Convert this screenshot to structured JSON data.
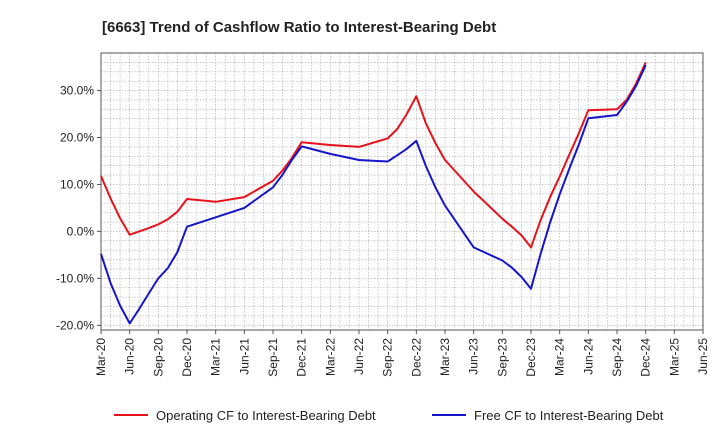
{
  "chart_data": {
    "type": "line",
    "title": "[6663]  Trend of Cashflow Ratio to Interest-Bearing Debt",
    "xlabel": "",
    "ylabel": "",
    "x_ticks": [
      "Mar-20",
      "Jun-20",
      "Sep-20",
      "Dec-20",
      "Mar-21",
      "Jun-21",
      "Sep-21",
      "Dec-21",
      "Mar-22",
      "Jun-22",
      "Sep-22",
      "Dec-22",
      "Mar-23",
      "Jun-23",
      "Sep-23",
      "Dec-23",
      "Mar-24",
      "Jun-24",
      "Sep-24",
      "Dec-24",
      "Mar-25",
      "Jun-25"
    ],
    "y_ticks": [
      "30.0%",
      "20.0%",
      "10.0%",
      "0.0%",
      "-10.0%",
      "-20.0%"
    ],
    "y_tick_values": [
      30,
      20,
      10,
      0,
      -10,
      -20
    ],
    "ylim": [
      -21,
      38
    ],
    "grid": true,
    "legend_position": "bottom",
    "series": [
      {
        "name": "Operating CF to Interest-Bearing Debt",
        "color": "#e8111a",
        "x": [
          "Mar-20",
          "Apr-20",
          "May-20",
          "Jun-20",
          "Jul-20",
          "Aug-20",
          "Sep-20",
          "Oct-20",
          "Nov-20",
          "Dec-20",
          "Mar-21",
          "Jun-21",
          "Sep-21",
          "Oct-21",
          "Nov-21",
          "Dec-21",
          "Mar-22",
          "Jun-22",
          "Sep-22",
          "Oct-22",
          "Nov-22",
          "Dec-22",
          "Jan-23",
          "Feb-23",
          "Mar-23",
          "Jun-23",
          "Sep-23",
          "Oct-23",
          "Nov-23",
          "Dec-23",
          "Jan-24",
          "Feb-24",
          "Mar-24",
          "Apr-24",
          "May-24",
          "Jun-24",
          "Sep-24",
          "Oct-24",
          "Nov-24",
          "Dec-24"
        ],
        "values": [
          11.8,
          7.0,
          2.8,
          -0.7,
          0.0,
          0.7,
          1.5,
          2.6,
          4.2,
          6.9,
          6.3,
          7.3,
          10.8,
          13.0,
          15.7,
          19.0,
          18.4,
          18.0,
          19.8,
          21.8,
          25.0,
          28.8,
          23.0,
          18.8,
          15.2,
          8.5,
          2.7,
          1.0,
          -0.8,
          -3.4,
          2.4,
          7.3,
          11.7,
          16.3,
          20.9,
          25.8,
          26.0,
          28.0,
          31.5,
          36.0
        ]
      },
      {
        "name": "Free CF to Interest-Bearing Debt",
        "color": "#1515cc",
        "x": [
          "Mar-20",
          "Apr-20",
          "May-20",
          "Jun-20",
          "Jul-20",
          "Aug-20",
          "Sep-20",
          "Oct-20",
          "Nov-20",
          "Dec-20",
          "Mar-21",
          "Jun-21",
          "Sep-21",
          "Oct-21",
          "Nov-21",
          "Dec-21",
          "Mar-22",
          "Jun-22",
          "Sep-22",
          "Oct-22",
          "Nov-22",
          "Dec-22",
          "Jan-23",
          "Feb-23",
          "Mar-23",
          "Jun-23",
          "Sep-23",
          "Oct-23",
          "Nov-23",
          "Dec-23",
          "Jan-24",
          "Feb-24",
          "Mar-24",
          "Apr-24",
          "May-24",
          "Jun-24",
          "Sep-24",
          "Oct-24",
          "Nov-24",
          "Dec-24"
        ],
        "values": [
          -4.8,
          -11.0,
          -15.8,
          -19.6,
          -16.5,
          -13.2,
          -10.0,
          -7.8,
          -4.4,
          1.0,
          3.0,
          5.0,
          9.4,
          12.1,
          15.3,
          18.1,
          16.5,
          15.2,
          14.9,
          16.2,
          17.6,
          19.3,
          13.9,
          9.4,
          5.5,
          -3.4,
          -6.2,
          -7.7,
          -9.7,
          -12.2,
          -4.8,
          1.9,
          7.9,
          13.3,
          18.5,
          24.1,
          24.8,
          27.6,
          31.0,
          35.4
        ]
      }
    ]
  }
}
